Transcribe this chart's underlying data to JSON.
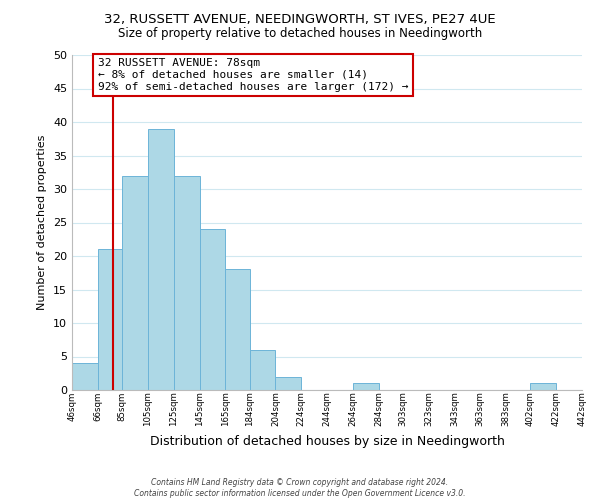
{
  "title": "32, RUSSETT AVENUE, NEEDINGWORTH, ST IVES, PE27 4UE",
  "subtitle": "Size of property relative to detached houses in Needingworth",
  "xlabel": "Distribution of detached houses by size in Needingworth",
  "ylabel": "Number of detached properties",
  "bar_edges": [
    46,
    66,
    85,
    105,
    125,
    145,
    165,
    184,
    204,
    224,
    244,
    264,
    284,
    303,
    323,
    343,
    363,
    383,
    402,
    422,
    442
  ],
  "bar_heights": [
    4,
    21,
    32,
    39,
    32,
    24,
    18,
    6,
    2,
    0,
    0,
    1,
    0,
    0,
    0,
    0,
    0,
    0,
    1,
    0,
    0
  ],
  "bar_color": "#add8e6",
  "bar_edge_color": "#6cb4d8",
  "grid_color": "#d0e8f0",
  "vline_x": 78,
  "vline_color": "#cc0000",
  "ylim": [
    0,
    50
  ],
  "tick_labels": [
    "46sqm",
    "66sqm",
    "85sqm",
    "105sqm",
    "125sqm",
    "145sqm",
    "165sqm",
    "184sqm",
    "204sqm",
    "224sqm",
    "244sqm",
    "264sqm",
    "284sqm",
    "303sqm",
    "323sqm",
    "343sqm",
    "363sqm",
    "383sqm",
    "402sqm",
    "422sqm",
    "442sqm"
  ],
  "annotation_title": "32 RUSSETT AVENUE: 78sqm",
  "annotation_line1": "← 8% of detached houses are smaller (14)",
  "annotation_line2": "92% of semi-detached houses are larger (172) →",
  "annotation_box_color": "#ffffff",
  "annotation_box_edge": "#cc0000",
  "footer1": "Contains HM Land Registry data © Crown copyright and database right 2024.",
  "footer2": "Contains public sector information licensed under the Open Government Licence v3.0.",
  "title_fontsize": 9.5,
  "subtitle_fontsize": 8.5,
  "xlabel_fontsize": 9,
  "ylabel_fontsize": 8
}
